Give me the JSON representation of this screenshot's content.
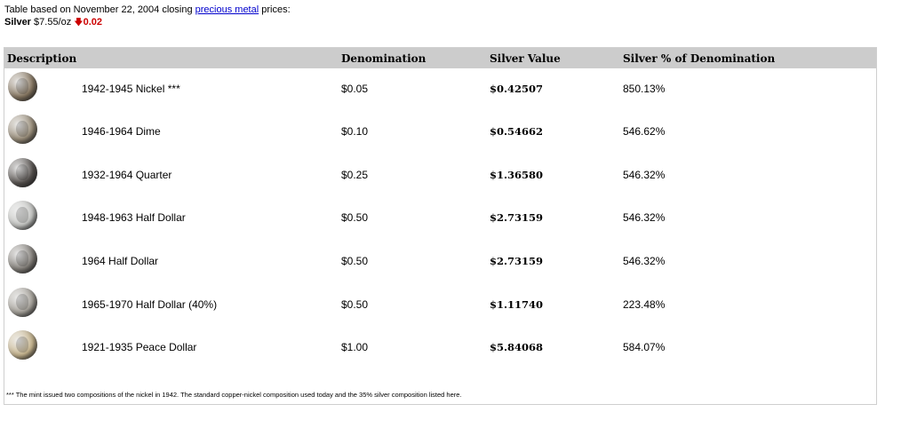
{
  "intro": {
    "line1_prefix": "Table based on November 22, 2004 closing ",
    "link_text": "precious metal",
    "line1_suffix": " prices:",
    "silver_label": "Silver",
    "silver_price": "$7.55/oz",
    "arrow_glyph": "🡇",
    "change": "0.02"
  },
  "table": {
    "headers": {
      "description": "Description",
      "denomination": "Denomination",
      "silver_value": "Silver Value",
      "silver_pct": "Silver % of Denomination"
    },
    "rows": [
      {
        "description": "1942-1945 Nickel ***",
        "denomination": "$0.05",
        "silver_value": "$0.42507",
        "silver_pct": "850.13%",
        "coin_color": "#8a7a64"
      },
      {
        "description": "1946-1964 Dime",
        "denomination": "$0.10",
        "silver_value": "$0.54662",
        "silver_pct": "546.62%",
        "coin_color": "#9b8f7b"
      },
      {
        "description": "1932-1964 Quarter",
        "denomination": "$0.25",
        "silver_value": "$1.36580",
        "silver_pct": "546.32%",
        "coin_color": "#5a5552"
      },
      {
        "description": "1948-1963 Half Dollar",
        "denomination": "$0.50",
        "silver_value": "$2.73159",
        "silver_pct": "546.32%",
        "coin_color": "#c8c9c6"
      },
      {
        "description": "1964 Half Dollar",
        "denomination": "$0.50",
        "silver_value": "$2.73159",
        "silver_pct": "546.32%",
        "coin_color": "#86827c"
      },
      {
        "description": "1965-1970 Half Dollar (40%)",
        "denomination": "$0.50",
        "silver_value": "$1.11740",
        "silver_pct": "223.48%",
        "coin_color": "#a8a49c"
      },
      {
        "description": "1921-1935 Peace Dollar",
        "denomination": "$1.00",
        "silver_value": "$5.84068",
        "silver_pct": "584.07%",
        "coin_color": "#c9b790"
      }
    ],
    "footnote": "*** The mint issued two compositions of the nickel in 1942. The standard copper-nickel composition used today and the 35% silver composition listed here."
  }
}
